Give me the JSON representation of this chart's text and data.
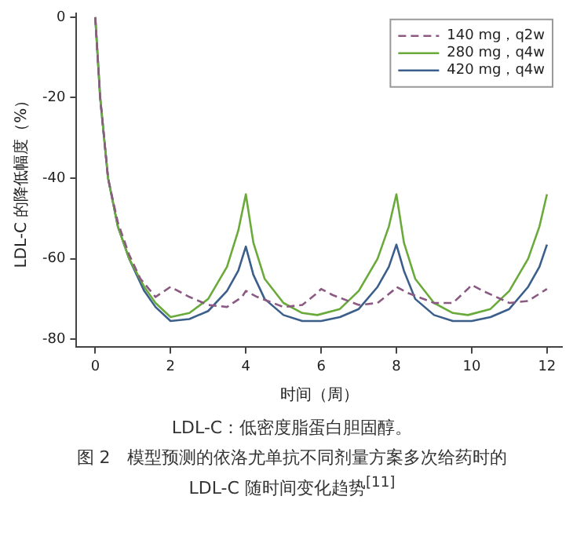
{
  "chart_data": {
    "type": "line",
    "xlabel": "时间（周）",
    "ylabel": "LDL-C 的降低幅度（%）",
    "xlim": [
      -0.5,
      12.4
    ],
    "xticks": [
      0,
      2,
      4,
      6,
      8,
      10,
      12
    ],
    "ylim": [
      -82,
      1
    ],
    "yticks": [
      0,
      -20,
      -40,
      -60,
      -80
    ],
    "grid": false,
    "legend": "top right",
    "marker": "none",
    "series": [
      {
        "name": "140 mg，q2w",
        "color": "#8b5a83",
        "line_style": "dashed",
        "x": [
          0,
          0.13,
          0.34,
          0.6,
          0.9,
          1.2,
          1.6,
          2,
          2.5,
          3,
          3.5,
          3.9,
          4,
          4.3,
          5,
          5.5,
          5.9,
          6,
          6.3,
          7,
          7.5,
          7.9,
          8,
          8.3,
          9,
          9.5,
          9.9,
          10,
          10.3,
          11,
          11.5,
          12
        ],
        "values": [
          0,
          -20,
          -40,
          -51,
          -59,
          -65,
          -69.5,
          -67,
          -69.5,
          -71.5,
          -72,
          -69.5,
          -68,
          -69.5,
          -72,
          -71.5,
          -68.5,
          -67.5,
          -69,
          -71.5,
          -71,
          -68,
          -67,
          -68.5,
          -71,
          -71,
          -67.5,
          -66.5,
          -68,
          -71,
          -70.5,
          -67.5
        ]
      },
      {
        "name": "280 mg，q4w",
        "color": "#6aaa3a",
        "line_style": "solid",
        "x": [
          0,
          0.13,
          0.34,
          0.6,
          0.9,
          1.3,
          1.6,
          2,
          2.5,
          3,
          3.5,
          3.8,
          4,
          4.2,
          4.5,
          5,
          5.5,
          5.9,
          6.5,
          7,
          7.5,
          7.8,
          8,
          8.2,
          8.5,
          9,
          9.5,
          9.9,
          10.5,
          11,
          11.5,
          11.8,
          12
        ],
        "values": [
          0,
          -20,
          -40,
          -52,
          -60,
          -67,
          -71,
          -74.5,
          -73.5,
          -70,
          -62,
          -53,
          -44,
          -56,
          -65,
          -71,
          -73.5,
          -74,
          -72.5,
          -68,
          -60,
          -52,
          -44,
          -56,
          -65,
          -71,
          -73.5,
          -74,
          -72.5,
          -68,
          -60,
          -52,
          -44
        ]
      },
      {
        "name": "420 mg，q4w",
        "color": "#3b5f8a",
        "line_style": "solid",
        "x": [
          0,
          0.13,
          0.34,
          0.6,
          0.9,
          1.3,
          1.6,
          2,
          2.5,
          3,
          3.5,
          3.8,
          4,
          4.2,
          4.5,
          5,
          5.5,
          6,
          6.5,
          7,
          7.5,
          7.8,
          8,
          8.2,
          8.5,
          9,
          9.5,
          10,
          10.5,
          11,
          11.5,
          11.8,
          12
        ],
        "values": [
          0,
          -20,
          -40,
          -52,
          -60,
          -68,
          -72,
          -75.5,
          -75,
          -73,
          -68,
          -63,
          -57,
          -64,
          -70,
          -74,
          -75.5,
          -75.5,
          -74.5,
          -72.5,
          -67,
          -62,
          -56.5,
          -63,
          -70,
          -74,
          -75.5,
          -75.5,
          -74.5,
          -72.5,
          -67,
          -62,
          -56.5
        ]
      }
    ],
    "annotations": [
      "LDL-C：低密度脂蛋白胆固醇。",
      "图 2　模型预测的依洛尤单抗不同剂量方案多次给药时的 LDL-C 随时间变化趋势$^{[11]}$"
    ]
  }
}
